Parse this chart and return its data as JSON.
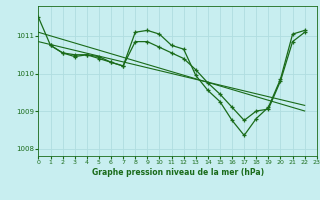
{
  "title": "Graphe pression niveau de la mer (hPa)",
  "background_color": "#c8eef0",
  "grid_color": "#b0dde0",
  "line_color": "#1a6b1a",
  "xlim": [
    0,
    23
  ],
  "ylim": [
    1007.8,
    1011.8
  ],
  "yticks": [
    1008,
    1009,
    1010,
    1011
  ],
  "xticks": [
    0,
    1,
    2,
    3,
    4,
    5,
    6,
    7,
    8,
    9,
    10,
    11,
    12,
    13,
    14,
    15,
    16,
    17,
    18,
    19,
    20,
    21,
    22,
    23
  ],
  "series1_x": [
    0,
    1,
    2,
    3,
    4,
    5,
    6,
    7,
    8,
    9,
    10,
    11,
    12,
    13,
    14,
    15,
    16,
    17,
    18,
    19,
    20,
    21,
    22
  ],
  "series1_y": [
    1011.5,
    1010.75,
    1010.55,
    1010.5,
    1010.5,
    1010.45,
    1010.3,
    1010.2,
    1011.1,
    1011.15,
    1011.05,
    1010.75,
    1010.65,
    1009.95,
    1009.55,
    1009.25,
    1008.75,
    1008.35,
    1008.8,
    1009.1,
    1009.85,
    1011.05,
    1011.15
  ],
  "series2_x": [
    1,
    2,
    3,
    4,
    5,
    6,
    7,
    8,
    9,
    10,
    11,
    12,
    13,
    14,
    15,
    16,
    17,
    18,
    19,
    20,
    21,
    22
  ],
  "series2_y": [
    1010.75,
    1010.55,
    1010.45,
    1010.5,
    1010.4,
    1010.3,
    1010.2,
    1010.85,
    1010.85,
    1010.7,
    1010.55,
    1010.4,
    1010.1,
    1009.75,
    1009.45,
    1009.1,
    1008.75,
    1009.0,
    1009.05,
    1009.8,
    1010.85,
    1011.1
  ],
  "trend1_x": [
    0,
    22
  ],
  "trend1_y": [
    1011.1,
    1009.0
  ],
  "trend2_x": [
    0,
    22
  ],
  "trend2_y": [
    1010.85,
    1009.15
  ]
}
